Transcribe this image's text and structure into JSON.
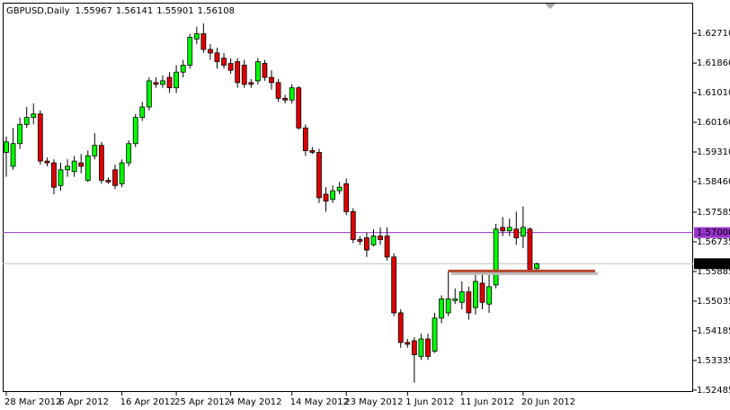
{
  "chart_data": {
    "type": "candlestick",
    "title": "GBPUSD,Daily",
    "categories": [
      "28 Mar 2012",
      null,
      null,
      null,
      null,
      null,
      null,
      null,
      "6 Apr 2012",
      null,
      null,
      null,
      null,
      null,
      null,
      null,
      null,
      "16 Apr 2012",
      null,
      null,
      null,
      null,
      null,
      null,
      null,
      "25 Apr 2012",
      null,
      null,
      null,
      null,
      null,
      null,
      null,
      "4 May 2012",
      null,
      null,
      null,
      null,
      null,
      null,
      null,
      null,
      "14 May 2012",
      null,
      null,
      null,
      null,
      null,
      null,
      null,
      "23 May 2012",
      null,
      null,
      null,
      null,
      null,
      null,
      null,
      null,
      "1 Jun 2012",
      null,
      null,
      null,
      null,
      null,
      null,
      null,
      "11 Jun 2012",
      null,
      null,
      null,
      null,
      null,
      null,
      null,
      null,
      "20 Jun 2012",
      null,
      null
    ],
    "open": [
      1.593,
      1.589,
      1.5955,
      1.601,
      1.603,
      1.604,
      1.5905,
      1.59,
      1.5835,
      1.588,
      1.5875,
      1.59,
      1.585,
      1.592,
      1.595,
      1.585,
      1.588,
      1.584,
      1.59,
      1.5955,
      1.603,
      1.606,
      1.613,
      1.6125,
      1.6145,
      1.6115,
      1.616,
      1.618,
      1.6255,
      1.627,
      1.6225,
      1.6215,
      1.62,
      1.6185,
      1.619,
      1.618,
      1.613,
      1.6135,
      1.6185,
      1.6145,
      1.613,
      1.6085,
      1.608,
      1.6115,
      1.6,
      1.5935,
      1.593,
      1.581,
      1.5795,
      1.582,
      1.584,
      1.576,
      1.568,
      1.5685,
      1.5665,
      1.569,
      1.569,
      1.563,
      1.547,
      1.5385,
      1.539,
      1.5345,
      1.5395,
      1.536,
      1.5455,
      1.547,
      1.5505,
      1.55,
      1.553,
      1.5485,
      1.5555,
      1.5495,
      1.555,
      1.5715,
      1.5705,
      1.571,
      1.569,
      1.571,
      1.55967
    ],
    "high": [
      1.5975,
      1.6,
      1.603,
      1.606,
      1.607,
      1.605,
      1.5915,
      1.591,
      1.59,
      1.591,
      1.592,
      1.5925,
      1.5935,
      1.5985,
      1.596,
      1.5858,
      1.5895,
      1.591,
      1.5965,
      1.604,
      1.6075,
      1.6145,
      1.6145,
      1.615,
      1.616,
      1.618,
      1.6195,
      1.627,
      1.629,
      1.63,
      1.624,
      1.623,
      1.6215,
      1.62,
      1.62,
      1.6195,
      1.614,
      1.62,
      1.6195,
      1.6165,
      1.614,
      1.6095,
      1.6125,
      1.612,
      1.601,
      1.5945,
      1.594,
      1.583,
      1.5835,
      1.5845,
      1.5855,
      1.577,
      1.569,
      1.57,
      1.571,
      1.5715,
      1.5715,
      1.564,
      1.548,
      1.5395,
      1.54,
      1.541,
      1.541,
      1.547,
      1.552,
      1.559,
      1.554,
      1.556,
      1.5545,
      1.558,
      1.558,
      1.559,
      1.5725,
      1.5745,
      1.574,
      1.576,
      1.5775,
      1.5715,
      1.56141
    ],
    "low": [
      1.586,
      1.588,
      1.594,
      1.6,
      1.601,
      1.5895,
      1.589,
      1.581,
      1.582,
      1.586,
      1.586,
      1.587,
      1.5845,
      1.591,
      1.584,
      1.584,
      1.5825,
      1.583,
      1.589,
      1.5945,
      1.602,
      1.605,
      1.6115,
      1.6115,
      1.61,
      1.61,
      1.6145,
      1.617,
      1.624,
      1.6215,
      1.6195,
      1.617,
      1.617,
      1.6155,
      1.6115,
      1.6115,
      1.6115,
      1.6125,
      1.6135,
      1.611,
      1.6075,
      1.607,
      1.607,
      1.5995,
      1.592,
      1.5925,
      1.5785,
      1.576,
      1.5785,
      1.581,
      1.575,
      1.567,
      1.5665,
      1.563,
      1.566,
      1.5665,
      1.562,
      1.546,
      1.537,
      1.537,
      1.527,
      1.5335,
      1.5335,
      1.5355,
      1.544,
      1.546,
      1.5495,
      1.548,
      1.545,
      1.5465,
      1.548,
      1.547,
      1.554,
      1.569,
      1.569,
      1.5665,
      1.5655,
      1.558,
      1.55901
    ],
    "close": [
      1.596,
      1.5955,
      1.601,
      1.603,
      1.604,
      1.5905,
      1.59,
      1.583,
      1.588,
      1.589,
      1.5905,
      1.589,
      1.592,
      1.595,
      1.585,
      1.5845,
      1.5835,
      1.59,
      1.5955,
      1.603,
      1.606,
      1.6135,
      1.6125,
      1.6135,
      1.6115,
      1.616,
      1.618,
      1.626,
      1.627,
      1.6225,
      1.6215,
      1.619,
      1.618,
      1.6165,
      1.613,
      1.6125,
      1.6125,
      1.619,
      1.6145,
      1.613,
      1.6085,
      1.608,
      1.6115,
      1.6,
      1.5935,
      1.593,
      1.58,
      1.579,
      1.582,
      1.583,
      1.576,
      1.568,
      1.5675,
      1.565,
      1.569,
      1.568,
      1.563,
      1.547,
      1.5385,
      1.538,
      1.535,
      1.5395,
      1.5345,
      1.5455,
      1.551,
      1.551,
      1.551,
      1.553,
      1.547,
      1.556,
      1.55,
      1.5545,
      1.571,
      1.5705,
      1.5715,
      1.5685,
      1.5715,
      1.559,
      1.56108
    ],
    "up_color": "#00ff00",
    "down_color": "#e00000",
    "ylim": [
      1.5243,
      1.6359
    ],
    "yticks": [
      {
        "value": 1.6271,
        "label": "1.62710"
      },
      {
        "value": 1.6186,
        "label": "1.61860"
      },
      {
        "value": 1.6101,
        "label": "1.61010"
      },
      {
        "value": 1.6016,
        "label": "1.60160"
      },
      {
        "value": 1.5931,
        "label": "1.59310"
      },
      {
        "value": 1.5846,
        "label": "1.58460"
      },
      {
        "value": 1.57585,
        "label": "1.57585"
      },
      {
        "value": 1.56735,
        "label": "1.56735"
      },
      {
        "value": 1.55885,
        "label": "1.55885"
      },
      {
        "value": 1.55035,
        "label": "1.55035"
      },
      {
        "value": 1.54185,
        "label": "1.54185"
      },
      {
        "value": 1.53335,
        "label": "1.53335"
      },
      {
        "value": 1.52485,
        "label": "1.52485"
      }
    ],
    "hline": {
      "value": 1.57,
      "label": "1.57000",
      "color": "#9932cc"
    },
    "support_level": 1.559,
    "support_color": "#b5452a"
  }
}
